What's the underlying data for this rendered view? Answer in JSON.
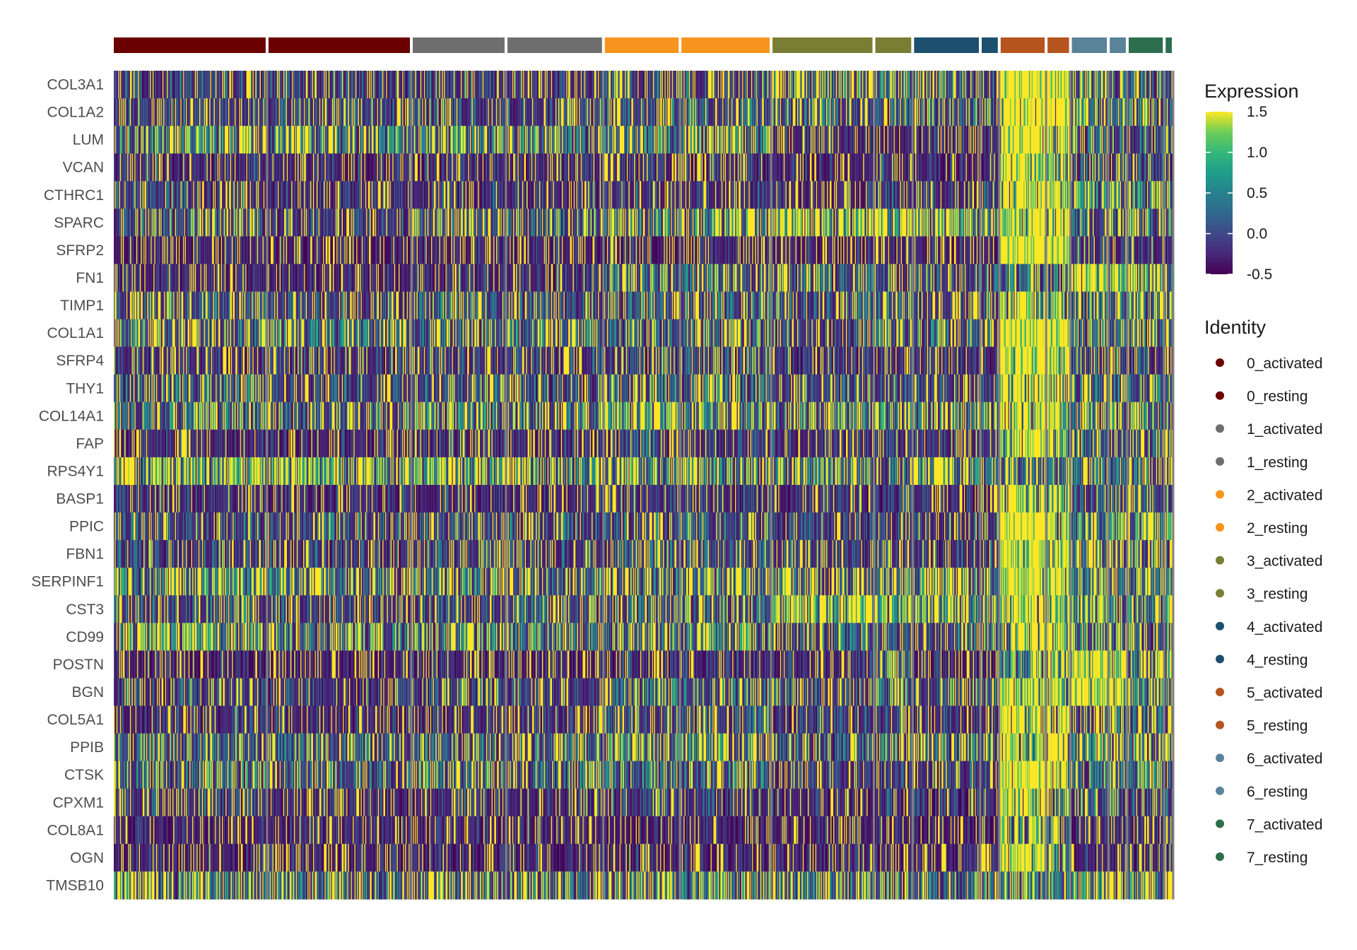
{
  "chart_data": {
    "type": "heatmap",
    "genes": [
      "COL3A1",
      "COL1A2",
      "LUM",
      "VCAN",
      "CTHRC1",
      "SPARC",
      "SFRP2",
      "FN1",
      "TIMP1",
      "COL1A1",
      "SFRP4",
      "THY1",
      "COL14A1",
      "FAP",
      "RPS4Y1",
      "BASP1",
      "PPIC",
      "FBN1",
      "SERPINF1",
      "CST3",
      "CD99",
      "POSTN",
      "BGN",
      "COL5A1",
      "PPIB",
      "CTSK",
      "CPXM1",
      "COL8A1",
      "OGN",
      "TMSB10"
    ],
    "groups": [
      {
        "name": "0_activated",
        "color": "#6b0000",
        "cells": 170
      },
      {
        "name": "0_resting",
        "color": "#6b0000",
        "cells": 160
      },
      {
        "name": "1_activated",
        "color": "#6e6e6e",
        "cells": 105
      },
      {
        "name": "1_resting",
        "color": "#6e6e6e",
        "cells": 108
      },
      {
        "name": "2_activated",
        "color": "#f7941d",
        "cells": 85
      },
      {
        "name": "2_resting",
        "color": "#f7941d",
        "cells": 101
      },
      {
        "name": "3_activated",
        "color": "#7a7d34",
        "cells": 114
      },
      {
        "name": "3_resting",
        "color": "#7a7d34",
        "cells": 43
      },
      {
        "name": "4_activated",
        "color": "#1d4f6e",
        "cells": 75
      },
      {
        "name": "4_resting",
        "color": "#1d4f6e",
        "cells": 21
      },
      {
        "name": "5_activated",
        "color": "#b5541f",
        "cells": 52
      },
      {
        "name": "5_resting",
        "color": "#b5541f",
        "cells": 27
      },
      {
        "name": "6_activated",
        "color": "#5a8399",
        "cells": 42
      },
      {
        "name": "6_resting",
        "color": "#5a8399",
        "cells": 21
      },
      {
        "name": "7_activated",
        "color": "#2d6e4e",
        "cells": 41
      },
      {
        "name": "7_resting",
        "color": "#2d6e4e",
        "cells": 10
      }
    ],
    "group_mean_expression": [
      [
        0.1,
        0.2,
        0.6,
        -0.1,
        0.0,
        0.2,
        -0.3,
        -0.2,
        0.3,
        0.4,
        -0.1,
        0.3,
        0.4,
        -0.2,
        0.8,
        -0.1,
        0.2,
        0.1,
        0.6,
        0.2,
        0.6,
        -0.3,
        0.1,
        -0.1,
        0.3,
        0.4,
        0.0,
        -0.3,
        -0.3,
        0.5
      ],
      [
        0.0,
        0.1,
        0.5,
        -0.2,
        -0.1,
        0.0,
        -0.4,
        -0.3,
        0.1,
        0.5,
        0.0,
        0.1,
        0.3,
        -0.2,
        0.7,
        -0.2,
        0.1,
        0.0,
        0.5,
        0.1,
        0.5,
        -0.3,
        0.0,
        -0.1,
        0.3,
        0.3,
        -0.2,
        -0.3,
        -0.3,
        0.4
      ],
      [
        0.1,
        0.1,
        0.6,
        -0.2,
        -0.1,
        0.2,
        -0.3,
        -0.2,
        0.3,
        0.3,
        -0.1,
        0.2,
        0.5,
        -0.2,
        0.7,
        -0.1,
        0.2,
        0.1,
        0.5,
        0.2,
        0.5,
        -0.3,
        0.1,
        -0.1,
        0.3,
        0.3,
        -0.1,
        -0.3,
        -0.3,
        0.4
      ],
      [
        0.0,
        0.1,
        0.5,
        -0.2,
        -0.2,
        0.3,
        -0.4,
        -0.2,
        0.2,
        0.4,
        0.1,
        0.1,
        0.4,
        -0.2,
        0.6,
        -0.2,
        0.2,
        0.1,
        0.4,
        0.2,
        0.4,
        -0.3,
        0.1,
        -0.1,
        0.3,
        0.4,
        -0.1,
        -0.3,
        -0.3,
        0.4
      ],
      [
        0.2,
        0.2,
        0.5,
        -0.1,
        0.0,
        0.5,
        -0.3,
        0.4,
        0.3,
        0.3,
        0.1,
        0.5,
        0.6,
        0.1,
        0.6,
        0.0,
        0.3,
        0.3,
        0.5,
        0.3,
        0.5,
        -0.2,
        0.4,
        0.2,
        0.5,
        0.4,
        0.0,
        -0.3,
        -0.3,
        0.5
      ],
      [
        0.2,
        0.2,
        0.6,
        -0.1,
        0.0,
        0.6,
        -0.3,
        0.3,
        0.3,
        0.3,
        0.1,
        0.4,
        0.5,
        0.0,
        0.5,
        0.0,
        0.3,
        0.2,
        0.5,
        0.3,
        0.5,
        -0.2,
        0.3,
        0.1,
        0.5,
        0.5,
        0.0,
        -0.3,
        -0.3,
        0.5
      ],
      [
        0.4,
        0.3,
        -0.2,
        -0.2,
        -0.1,
        1.0,
        -0.3,
        0.3,
        0.2,
        0.2,
        -0.1,
        0.1,
        0.5,
        -0.1,
        0.5,
        -0.1,
        0.1,
        0.0,
        0.4,
        0.9,
        0.3,
        -0.2,
        0.3,
        0.0,
        0.4,
        0.0,
        -0.2,
        -0.3,
        -0.3,
        0.4
      ],
      [
        0.5,
        0.4,
        -0.2,
        -0.1,
        0.1,
        1.0,
        -0.3,
        0.2,
        0.3,
        0.3,
        0.0,
        0.2,
        0.6,
        0.0,
        0.2,
        0.0,
        0.1,
        0.1,
        0.5,
        0.8,
        0.4,
        0.4,
        0.4,
        0.1,
        0.5,
        0.1,
        -0.1,
        -0.3,
        -0.3,
        0.4
      ],
      [
        0.3,
        0.3,
        -0.2,
        -0.2,
        0.0,
        0.6,
        -0.2,
        0.2,
        0.2,
        0.3,
        0.0,
        0.1,
        0.4,
        -0.1,
        0.6,
        -0.1,
        0.1,
        0.0,
        0.4,
        0.6,
        0.3,
        -0.2,
        0.2,
        0.0,
        0.4,
        0.0,
        -0.2,
        -0.3,
        -0.3,
        0.4
      ],
      [
        0.3,
        0.3,
        -0.2,
        -0.2,
        0.0,
        0.6,
        -0.2,
        0.2,
        0.2,
        0.3,
        0.0,
        0.1,
        0.4,
        -0.1,
        0.3,
        -0.1,
        0.1,
        0.0,
        0.4,
        0.6,
        0.3,
        -0.2,
        0.2,
        0.0,
        0.4,
        0.0,
        -0.2,
        -0.3,
        -0.3,
        0.4
      ],
      [
        1.4,
        1.3,
        1.3,
        1.1,
        1.2,
        1.2,
        1.4,
        0.5,
        0.9,
        1.3,
        1.3,
        1.2,
        1.0,
        1.1,
        0.4,
        1.1,
        1.3,
        1.2,
        1.2,
        1.1,
        1.1,
        0.6,
        1.2,
        1.2,
        1.1,
        1.4,
        1.1,
        1.0,
        1.1,
        0.6
      ],
      [
        1.3,
        1.2,
        1.1,
        0.8,
        1.1,
        1.0,
        1.2,
        0.5,
        0.9,
        1.2,
        1.1,
        0.9,
        0.9,
        0.9,
        0.5,
        0.9,
        1.2,
        1.0,
        1.1,
        1.0,
        1.0,
        1.0,
        1.1,
        1.0,
        1.0,
        1.2,
        0.7,
        0.3,
        0.6,
        0.6
      ],
      [
        0.4,
        0.5,
        0.3,
        0.0,
        0.7,
        0.3,
        0.0,
        1.3,
        0.5,
        0.5,
        0.1,
        0.3,
        0.4,
        0.3,
        0.4,
        0.3,
        0.6,
        0.4,
        0.5,
        0.7,
        0.6,
        1.1,
        1.3,
        0.3,
        0.6,
        0.4,
        0.2,
        -0.2,
        -0.2,
        0.7
      ],
      [
        0.3,
        0.4,
        0.3,
        0.0,
        0.5,
        0.3,
        0.0,
        1.0,
        0.5,
        0.4,
        0.1,
        0.3,
        0.4,
        0.3,
        0.4,
        0.3,
        0.7,
        0.4,
        0.4,
        0.6,
        0.5,
        0.9,
        1.0,
        0.3,
        0.5,
        0.4,
        0.2,
        -0.2,
        -0.2,
        1.0
      ],
      [
        0.4,
        0.5,
        0.2,
        0.0,
        0.6,
        0.3,
        0.0,
        0.8,
        0.6,
        0.5,
        0.1,
        0.4,
        0.4,
        0.3,
        0.3,
        0.3,
        0.6,
        0.4,
        0.5,
        0.5,
        0.5,
        0.7,
        0.6,
        0.3,
        0.5,
        0.4,
        0.2,
        -0.2,
        -0.2,
        0.6
      ],
      [
        0.3,
        0.4,
        0.2,
        0.0,
        0.4,
        0.3,
        0.0,
        0.6,
        0.5,
        0.4,
        0.1,
        0.3,
        0.4,
        0.2,
        0.3,
        0.2,
        0.5,
        0.3,
        0.4,
        0.5,
        0.4,
        0.5,
        0.5,
        0.2,
        0.4,
        0.3,
        0.1,
        -0.2,
        -0.2,
        0.5
      ]
    ],
    "legend_continuous": {
      "title": "Expression",
      "ticks": [
        "1.5",
        "1.0",
        "0.5",
        "0.0",
        "-0.5"
      ],
      "min": -0.5,
      "max": 1.5,
      "palette": "viridis"
    },
    "legend_groups": {
      "title": "Identity"
    }
  }
}
